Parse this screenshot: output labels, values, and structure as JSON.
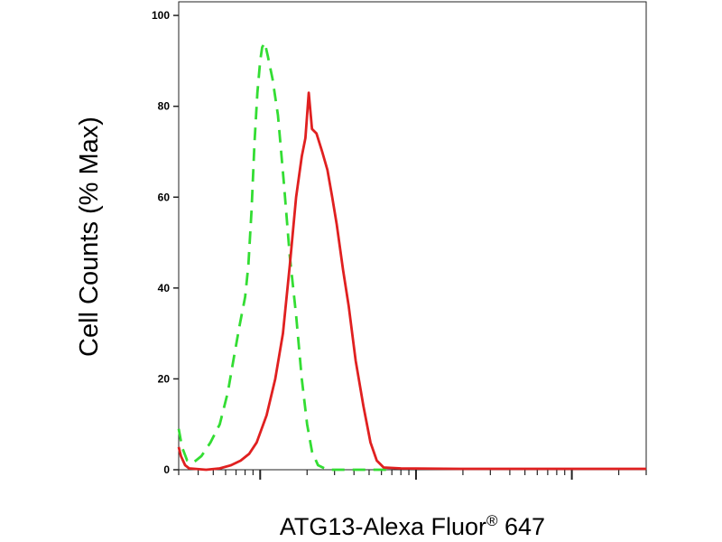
{
  "chart_data": {
    "type": "line",
    "title": "",
    "xlabel_main": "ATG13-Alexa Fluor",
    "xlabel_sup": "®",
    "xlabel_tail": " 647",
    "ylabel": "Cell Counts (% Max)",
    "ylim": [
      0,
      103
    ],
    "xscale": "log",
    "xlim": [
      0.3,
      300
    ],
    "x_major_ticks": [
      1,
      10,
      100
    ],
    "y_ticks": [
      0,
      20,
      40,
      60,
      80,
      100
    ],
    "y_tick_labels": [
      "0",
      "20",
      "40",
      "60",
      "80",
      "100"
    ],
    "grid": false,
    "series": [
      {
        "color": "#33dd33",
        "dash": "dashed",
        "points": [
          [
            0.3,
            9
          ],
          [
            0.315,
            5
          ],
          [
            0.34,
            2
          ],
          [
            0.37,
            1.5
          ],
          [
            0.42,
            3
          ],
          [
            0.48,
            6
          ],
          [
            0.55,
            10
          ],
          [
            0.62,
            17
          ],
          [
            0.68,
            25
          ],
          [
            0.74,
            32
          ],
          [
            0.8,
            38
          ],
          [
            0.84,
            45
          ],
          [
            0.88,
            57
          ],
          [
            0.92,
            72
          ],
          [
            0.96,
            83
          ],
          [
            1.0,
            90
          ],
          [
            1.03,
            93
          ],
          [
            1.07,
            94
          ],
          [
            1.12,
            91
          ],
          [
            1.2,
            86
          ],
          [
            1.3,
            78
          ],
          [
            1.42,
            63
          ],
          [
            1.55,
            47
          ],
          [
            1.7,
            34
          ],
          [
            1.85,
            20
          ],
          [
            2.0,
            10
          ],
          [
            2.15,
            4
          ],
          [
            2.35,
            1
          ],
          [
            2.7,
            0
          ],
          [
            4.0,
            0
          ],
          [
            7.0,
            0
          ]
        ]
      },
      {
        "color": "#e02020",
        "dash": "solid",
        "points": [
          [
            0.3,
            5
          ],
          [
            0.31,
            3
          ],
          [
            0.33,
            1
          ],
          [
            0.35,
            0.3
          ],
          [
            0.45,
            0
          ],
          [
            0.55,
            0.3
          ],
          [
            0.65,
            1
          ],
          [
            0.75,
            2
          ],
          [
            0.85,
            3.5
          ],
          [
            0.95,
            6
          ],
          [
            1.1,
            12
          ],
          [
            1.25,
            20
          ],
          [
            1.4,
            30
          ],
          [
            1.55,
            45
          ],
          [
            1.7,
            60
          ],
          [
            1.85,
            69
          ],
          [
            1.95,
            73
          ],
          [
            2.05,
            83
          ],
          [
            2.15,
            75
          ],
          [
            2.3,
            74
          ],
          [
            2.5,
            70
          ],
          [
            2.7,
            66
          ],
          [
            2.9,
            60
          ],
          [
            3.1,
            54
          ],
          [
            3.4,
            44
          ],
          [
            3.7,
            36
          ],
          [
            4.1,
            24
          ],
          [
            4.6,
            14
          ],
          [
            5.1,
            6
          ],
          [
            5.6,
            2
          ],
          [
            6.2,
            0.5
          ],
          [
            8,
            0.3
          ],
          [
            20,
            0.2
          ],
          [
            60,
            0.2
          ],
          [
            300,
            0.2
          ]
        ]
      }
    ]
  }
}
